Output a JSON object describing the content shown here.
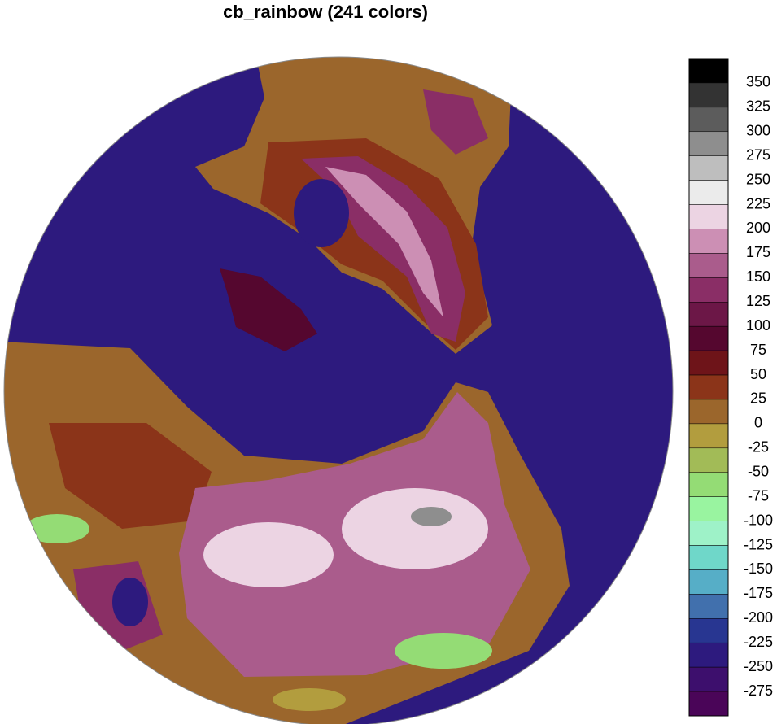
{
  "title": "cb_rainbow (241 colors)",
  "colorbar": {
    "levels": [
      350,
      325,
      300,
      275,
      250,
      225,
      200,
      175,
      150,
      125,
      100,
      75,
      50,
      25,
      0,
      -25,
      -50,
      -75,
      -100,
      -125,
      -150,
      -175,
      -200,
      -225,
      -250,
      -275
    ],
    "colors": [
      "#000000",
      "#333333",
      "#5c5c5c",
      "#8e8e8e",
      "#bebebe",
      "#ebebeb",
      "#ecd4e3",
      "#cc8fb4",
      "#aa5c8c",
      "#8a2e66",
      "#6c1747",
      "#55072f",
      "#6e1419",
      "#8b3419",
      "#9b662c",
      "#b29d3e",
      "#a2bb57",
      "#94dc75",
      "#99f4a0",
      "#9ef2c8",
      "#6fd7c9",
      "#56aec7",
      "#4170ad",
      "#283691",
      "#2d1a7e",
      "#3d0f6d",
      "#4a0558"
    ]
  }
}
